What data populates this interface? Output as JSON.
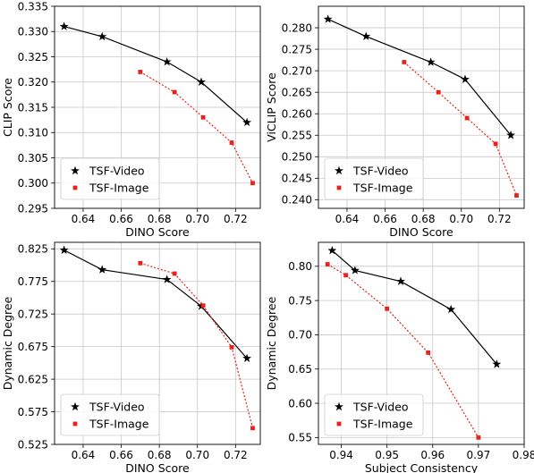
{
  "colors": {
    "video": "#000000",
    "image": "#e8221b",
    "grid": "#c8c8c8"
  },
  "chart_data": [
    {
      "type": "line",
      "xlabel": "DINO Score",
      "ylabel": "CLIP Score",
      "xlim": [
        0.625,
        0.733
      ],
      "ylim": [
        0.295,
        0.335
      ],
      "xticks": [
        "0.64",
        "0.66",
        "0.68",
        "0.70",
        "0.72"
      ],
      "yticks": [
        "0.295",
        "0.300",
        "0.305",
        "0.310",
        "0.315",
        "0.320",
        "0.325",
        "0.330",
        "0.335"
      ],
      "grid": true,
      "legend": "bottom-left",
      "series": [
        {
          "name": "TSF-Video",
          "x": [
            0.63,
            0.65,
            0.684,
            0.702,
            0.726
          ],
          "y": [
            0.331,
            0.329,
            0.324,
            0.32,
            0.312
          ]
        },
        {
          "name": "TSF-Image",
          "x": [
            0.67,
            0.688,
            0.703,
            0.718,
            0.729
          ],
          "y": [
            0.322,
            0.318,
            0.313,
            0.308,
            0.3
          ]
        }
      ]
    },
    {
      "type": "line",
      "xlabel": "DINO Score",
      "ylabel": "ViCLIP Score",
      "xlim": [
        0.625,
        0.733
      ],
      "ylim": [
        0.238,
        0.285
      ],
      "xticks": [
        "0.64",
        "0.66",
        "0.68",
        "0.70",
        "0.72"
      ],
      "yticks": [
        "0.240",
        "0.245",
        "0.250",
        "0.255",
        "0.260",
        "0.265",
        "0.270",
        "0.275",
        "0.280"
      ],
      "grid": true,
      "legend": "bottom-left",
      "series": [
        {
          "name": "TSF-Video",
          "x": [
            0.63,
            0.65,
            0.684,
            0.702,
            0.726
          ],
          "y": [
            0.282,
            0.278,
            0.272,
            0.268,
            0.255
          ]
        },
        {
          "name": "TSF-Image",
          "x": [
            0.67,
            0.688,
            0.703,
            0.718,
            0.729
          ],
          "y": [
            0.272,
            0.265,
            0.259,
            0.253,
            0.241
          ]
        }
      ]
    },
    {
      "type": "line",
      "xlabel": "DINO Score",
      "ylabel": "Dynamic Degree",
      "xlim": [
        0.625,
        0.733
      ],
      "ylim": [
        0.525,
        0.835
      ],
      "xticks": [
        "0.64",
        "0.66",
        "0.68",
        "0.70",
        "0.72"
      ],
      "yticks": [
        "0.525",
        "0.575",
        "0.625",
        "0.675",
        "0.725",
        "0.775",
        "0.825"
      ],
      "grid": true,
      "legend": "bottom-left",
      "series": [
        {
          "name": "TSF-Video",
          "x": [
            0.63,
            0.65,
            0.684,
            0.702,
            0.726
          ],
          "y": [
            0.823,
            0.793,
            0.778,
            0.737,
            0.657
          ]
        },
        {
          "name": "TSF-Image",
          "x": [
            0.67,
            0.688,
            0.703,
            0.718,
            0.729
          ],
          "y": [
            0.803,
            0.787,
            0.738,
            0.674,
            0.55
          ]
        }
      ]
    },
    {
      "type": "line",
      "xlabel": "Subject Consistency",
      "ylabel": "Dynamic Degree",
      "xlim": [
        0.935,
        0.98
      ],
      "ylim": [
        0.54,
        0.835
      ],
      "xticks": [
        "0.94",
        "0.95",
        "0.96",
        "0.97",
        "0.98"
      ],
      "yticks": [
        "0.55",
        "0.60",
        "0.65",
        "0.70",
        "0.75",
        "0.80"
      ],
      "grid": true,
      "legend": "bottom-left",
      "series": [
        {
          "name": "TSF-Video",
          "x": [
            0.938,
            0.943,
            0.953,
            0.964,
            0.974
          ],
          "y": [
            0.823,
            0.794,
            0.778,
            0.737,
            0.657
          ]
        },
        {
          "name": "TSF-Image",
          "x": [
            0.937,
            0.941,
            0.95,
            0.959,
            0.97
          ],
          "y": [
            0.803,
            0.787,
            0.738,
            0.674,
            0.55
          ]
        }
      ]
    }
  ]
}
